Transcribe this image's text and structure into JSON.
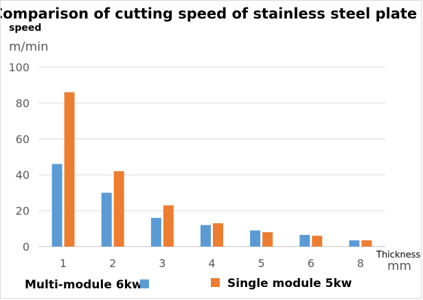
{
  "chart_data": {
    "type": "bar",
    "title": "Comparison of cutting speed of stainless steel plate",
    "ylabel": "speed",
    "yunit": "m/min",
    "xlabel": "Thickness",
    "xunit": "mm",
    "categories": [
      "1",
      "2",
      "3",
      "4",
      "5",
      "6",
      "8"
    ],
    "ylim": [
      0,
      100
    ],
    "yticks": [
      0,
      20,
      40,
      60,
      80,
      100
    ],
    "grid": true,
    "legend_position": "bottom",
    "series": [
      {
        "name": "Multi-module 6kw",
        "color": "#5b9bd5",
        "values": [
          46,
          30,
          16,
          12,
          9,
          6.5,
          3.5
        ]
      },
      {
        "name": "Single module 5kw",
        "color": "#ed7d31",
        "values": [
          86,
          42,
          23,
          13,
          8,
          6,
          3.5
        ]
      }
    ]
  }
}
